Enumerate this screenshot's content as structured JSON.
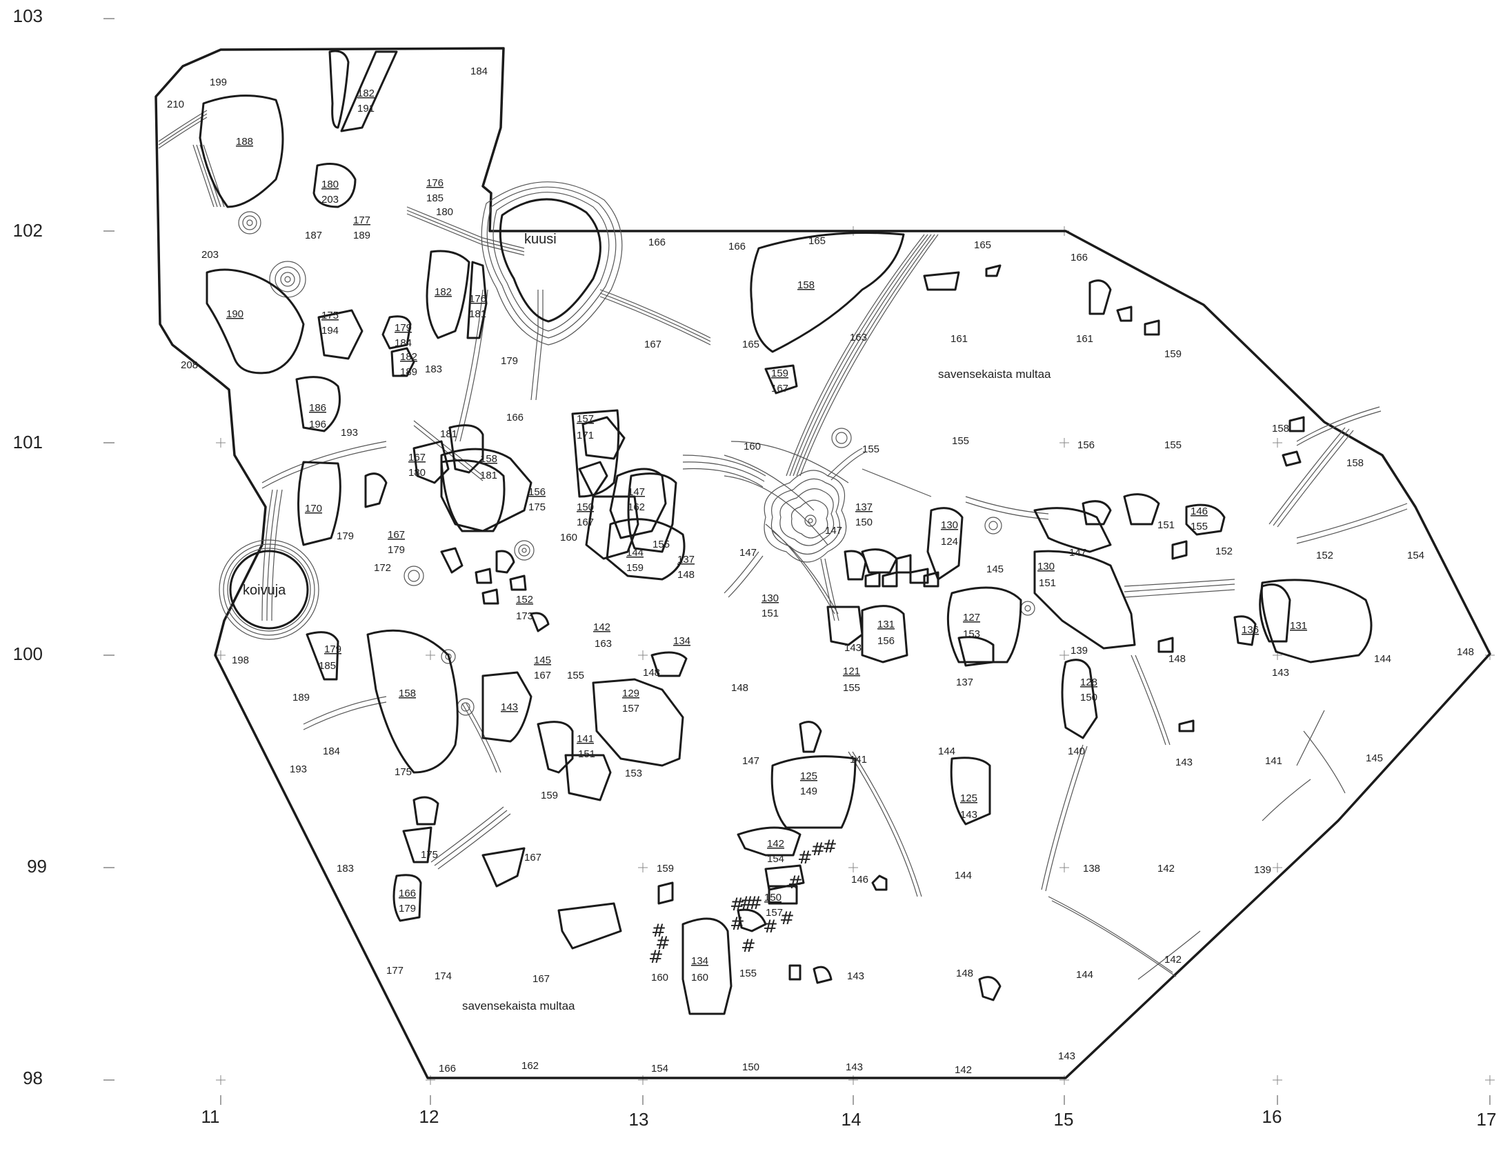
{
  "x_axis": [
    "11",
    "12",
    "13",
    "14",
    "15",
    "16",
    "17"
  ],
  "y_axis": [
    "103",
    "102",
    "101",
    "100",
    "99",
    "98"
  ],
  "features": {
    "kuusi": "kuusi",
    "koivuja": "koivuja",
    "soil_east": "savensekaista multaa",
    "soil_south": "savensekaista multaa"
  },
  "stones": [
    {
      "top": "188",
      "bottom": ""
    },
    {
      "top": "182",
      "bottom": "191"
    },
    {
      "top": "180",
      "bottom": "203"
    },
    {
      "top": "176",
      "bottom": "185"
    },
    {
      "top": "177",
      "bottom": "189"
    },
    {
      "top": "175",
      "bottom": "194"
    },
    {
      "top": "190",
      "bottom": ""
    },
    {
      "top": "182",
      "bottom": ""
    },
    {
      "top": "176",
      "bottom": "181"
    },
    {
      "top": "179",
      "bottom": "184"
    },
    {
      "top": "182",
      "bottom": "189"
    },
    {
      "top": "186",
      "bottom": "196"
    },
    {
      "top": "158",
      "bottom": ""
    },
    {
      "top": "159",
      "bottom": "167"
    },
    {
      "top": "157",
      "bottom": "171"
    },
    {
      "top": "158",
      "bottom": "181"
    },
    {
      "top": "167",
      "bottom": "180"
    },
    {
      "top": "170",
      "bottom": ""
    },
    {
      "top": "156",
      "bottom": "175"
    },
    {
      "top": "150",
      "bottom": "167"
    },
    {
      "top": "147",
      "bottom": "162"
    },
    {
      "top": "167",
      "bottom": "179"
    },
    {
      "top": "144",
      "bottom": "159"
    },
    {
      "top": "137",
      "bottom": "148"
    },
    {
      "top": "137",
      "bottom": "150"
    },
    {
      "top": "130",
      "bottom": "124"
    },
    {
      "top": "146",
      "bottom": "155"
    },
    {
      "top": "152",
      "bottom": "173"
    },
    {
      "top": "130",
      "bottom": "151"
    },
    {
      "top": "142",
      "bottom": "163"
    },
    {
      "top": "131",
      "bottom": "156"
    },
    {
      "top": "127",
      "bottom": "153"
    },
    {
      "top": "130",
      "bottom": "151"
    },
    {
      "top": "136",
      "bottom": ""
    },
    {
      "top": "131",
      "bottom": ""
    },
    {
      "top": "179",
      "bottom": "185"
    },
    {
      "top": "134",
      "bottom": ""
    },
    {
      "top": "145",
      "bottom": "167"
    },
    {
      "top": "158",
      "bottom": ""
    },
    {
      "top": "143",
      "bottom": ""
    },
    {
      "top": "129",
      "bottom": "157"
    },
    {
      "top": "121",
      "bottom": "155"
    },
    {
      "top": "128",
      "bottom": "150"
    },
    {
      "top": "141",
      "bottom": "151"
    },
    {
      "top": "125",
      "bottom": "149"
    },
    {
      "top": "125",
      "bottom": "143"
    },
    {
      "top": "142",
      "bottom": "154"
    },
    {
      "top": "166",
      "bottom": "179"
    },
    {
      "top": "150",
      "bottom": "157"
    },
    {
      "top": "134",
      "bottom": "160"
    }
  ],
  "levels": [
    "199",
    "184",
    "210",
    "203",
    "187",
    "180",
    "208",
    "183",
    "179",
    "193",
    "181",
    "166",
    "166",
    "165",
    "166",
    "165",
    "166",
    "167",
    "165",
    "163",
    "161",
    "161",
    "159",
    "160",
    "155",
    "155",
    "156",
    "155",
    "158",
    "158",
    "147",
    "147",
    "155",
    "160",
    "172",
    "179",
    "151",
    "152",
    "152",
    "154",
    "145",
    "147",
    "198",
    "189",
    "184",
    "193",
    "175",
    "155",
    "148",
    "148",
    "143",
    "139",
    "137",
    "148",
    "143",
    "144",
    "148",
    "159",
    "153",
    "147",
    "141",
    "144",
    "140",
    "143",
    "141",
    "145",
    "183",
    "175",
    "167",
    "159",
    "146",
    "144",
    "138",
    "142",
    "139",
    "177",
    "174",
    "167",
    "160",
    "155",
    "143",
    "148",
    "144",
    "142",
    "166",
    "162",
    "154",
    "150",
    "143",
    "142",
    "143"
  ],
  "hash_mark": "#"
}
